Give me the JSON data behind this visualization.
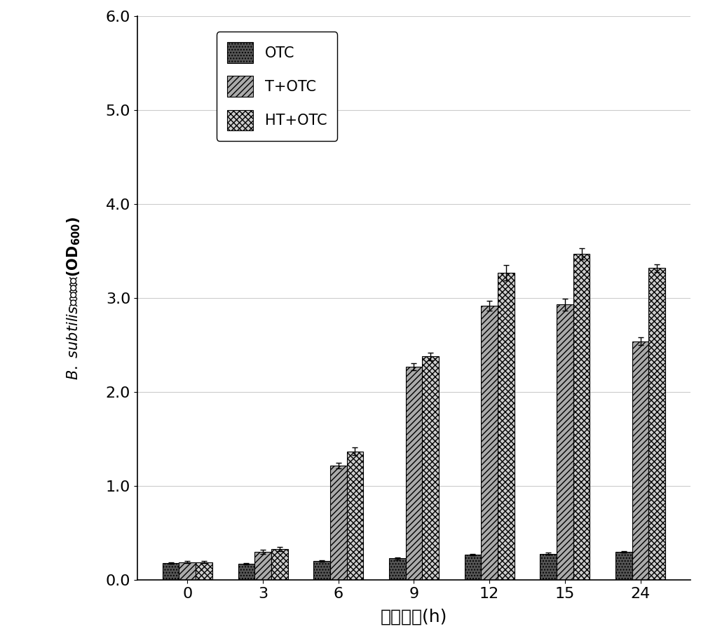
{
  "time_points": [
    0,
    3,
    6,
    9,
    12,
    15,
    24
  ],
  "series_keys": [
    "OTC",
    "T+OTC",
    "HT+OTC"
  ],
  "series": {
    "OTC": {
      "values": [
        0.18,
        0.17,
        0.2,
        0.23,
        0.27,
        0.28,
        0.3
      ],
      "errors": [
        0.008,
        0.008,
        0.008,
        0.01,
        0.01,
        0.01,
        0.01
      ],
      "label": "OTC",
      "hatch": "....",
      "facecolor": "#555555",
      "edgecolor": "#000000"
    },
    "T+OTC": {
      "values": [
        0.19,
        0.3,
        1.22,
        2.27,
        2.92,
        2.93,
        2.54
      ],
      "errors": [
        0.01,
        0.02,
        0.03,
        0.04,
        0.05,
        0.06,
        0.04
      ],
      "label": "T+OTC",
      "hatch": "////",
      "facecolor": "#aaaaaa",
      "edgecolor": "#000000"
    },
    "HT+OTC": {
      "values": [
        0.19,
        0.33,
        1.37,
        2.38,
        3.27,
        3.47,
        3.32
      ],
      "errors": [
        0.01,
        0.02,
        0.04,
        0.04,
        0.08,
        0.06,
        0.04
      ],
      "label": "HT+OTC",
      "hatch": "xxxx",
      "facecolor": "#cccccc",
      "edgecolor": "#000000"
    }
  },
  "xlabel": "发酵时间(h)",
  "ylim": [
    0.0,
    6.0
  ],
  "yticks": [
    0.0,
    1.0,
    2.0,
    3.0,
    4.0,
    5.0,
    6.0
  ],
  "bar_width": 0.22,
  "background_color": "#ffffff",
  "grid_color": "#cccccc"
}
